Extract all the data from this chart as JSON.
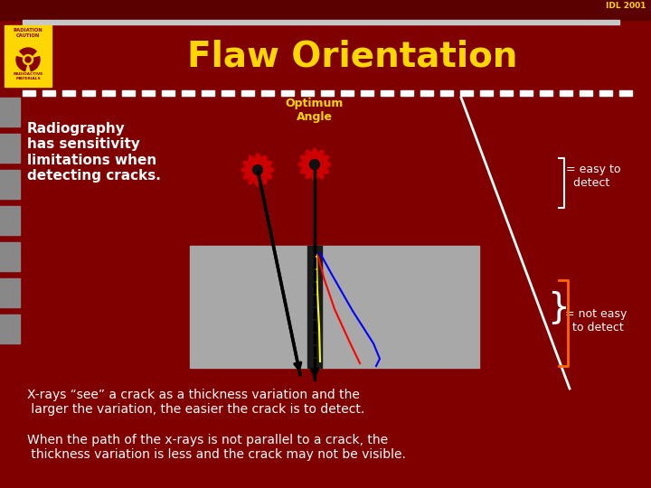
{
  "bg_color": "#800000",
  "title": "Flaw Orientation",
  "title_color": "#FFD700",
  "title_fontsize": 28,
  "idl_text": "IDL 2001",
  "idl_color": "#FFD700",
  "left_text": "Radiography\nhas sensitivity\nlimitations when\ndetecting cracks.",
  "optimum_label": "Optimum\nAngle",
  "optimum_color": "#FFD700",
  "easy_text": "= easy to\n  detect",
  "not_easy_text": "= not easy\n  to detect",
  "bottom_text1": "X-rays “see” a crack as a thickness variation and the\n larger the variation, the easier the crack is to detect.",
  "bottom_text2": "When the path of the x-rays is not parallel to a crack, the\n thickness variation is less and the crack may not be visible.",
  "dash_color": "#FFFFFF",
  "plate_color": "#A8A8A8",
  "weld_color": "#1a1a1a"
}
